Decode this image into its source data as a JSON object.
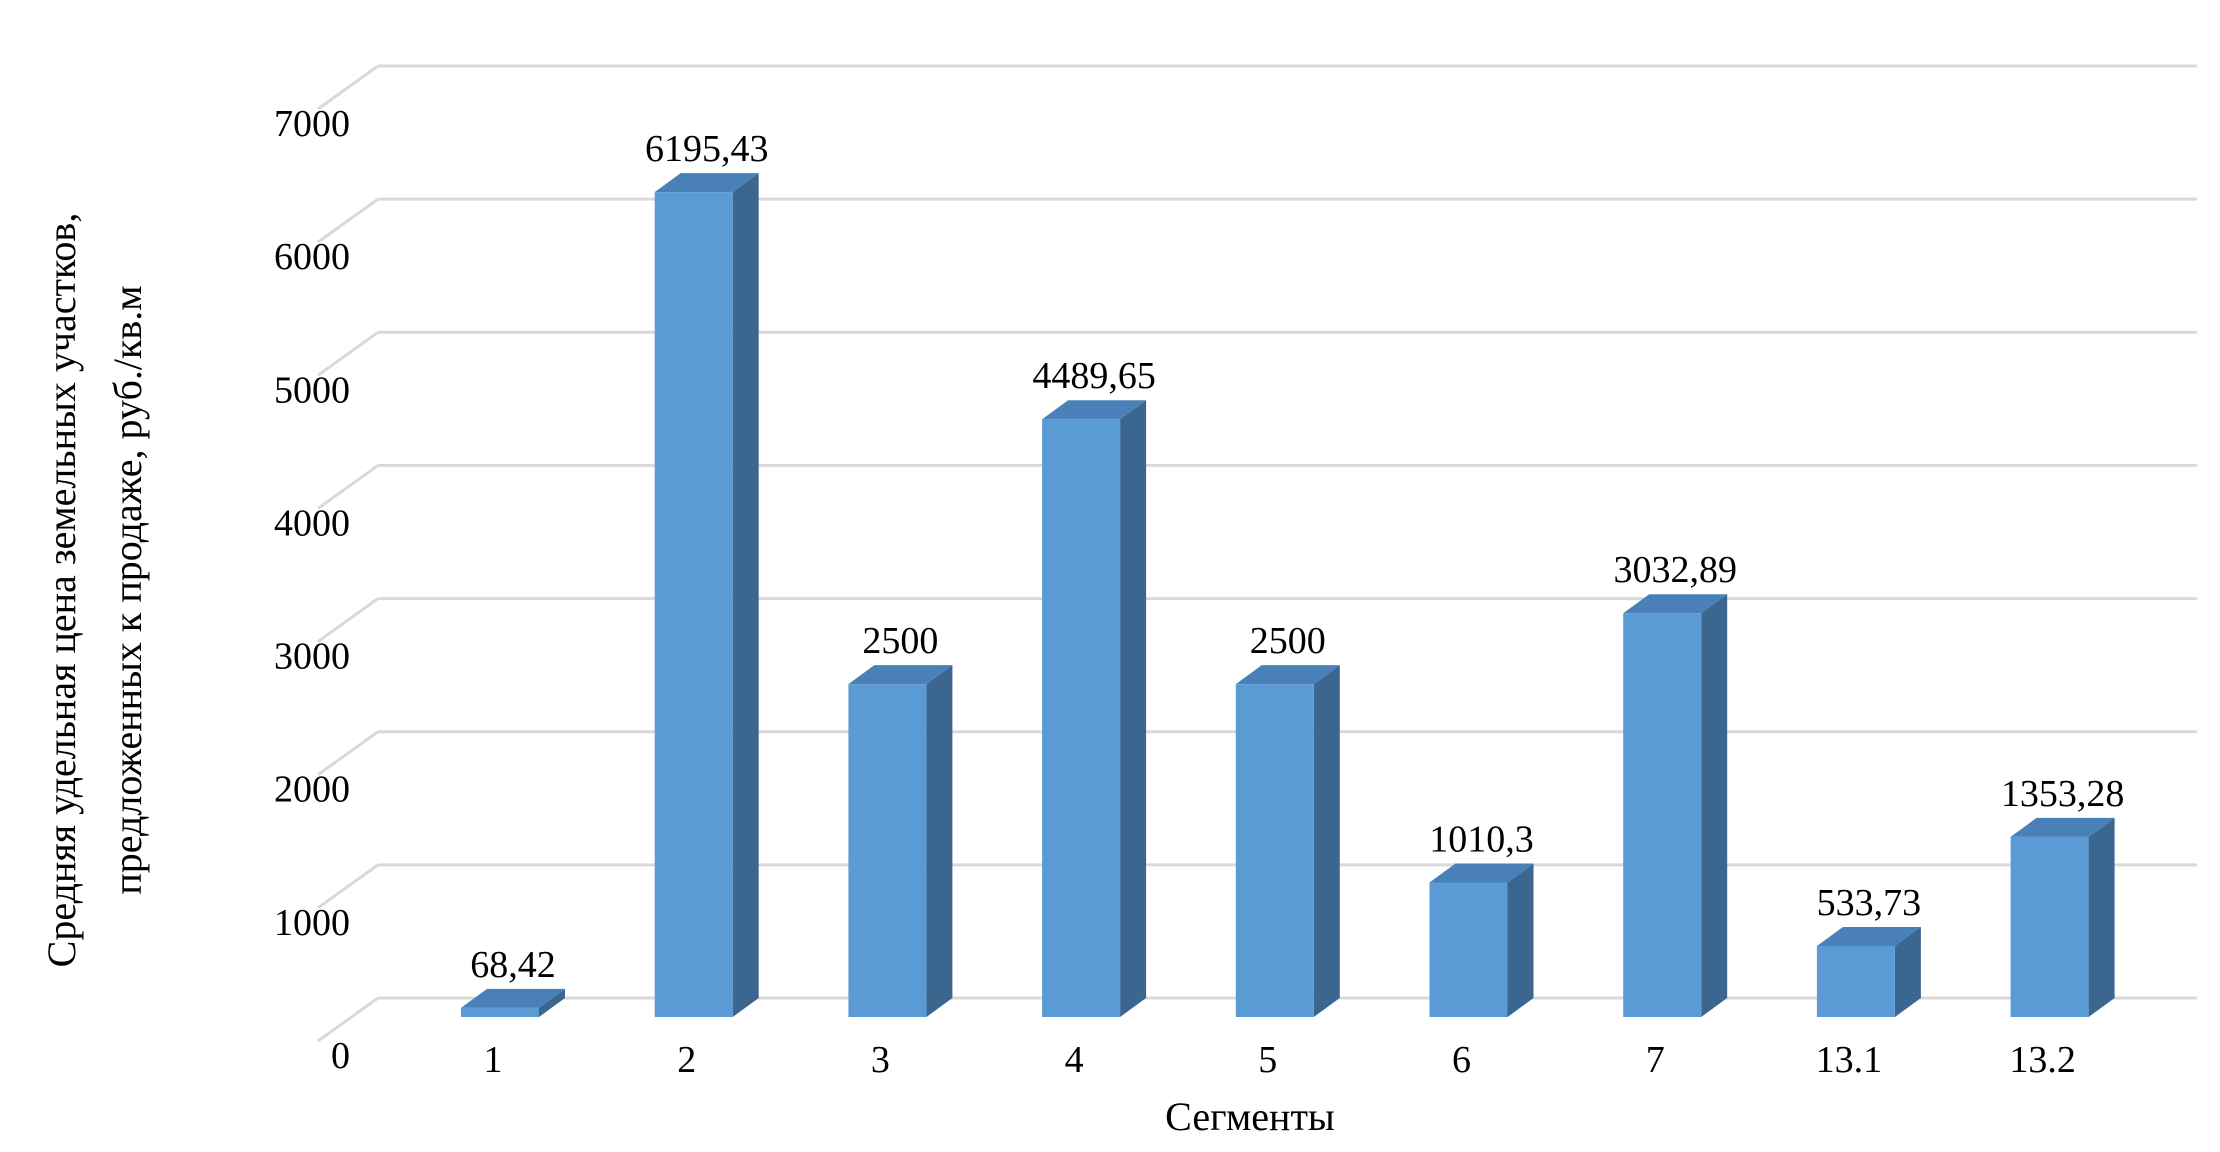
{
  "chart_data": {
    "type": "bar",
    "style": "3d-column",
    "categories": [
      "1",
      "2",
      "3",
      "4",
      "5",
      "6",
      "7",
      "13.1",
      "13.2"
    ],
    "values": [
      68.42,
      6195.43,
      2500,
      4489.65,
      2500,
      1010.3,
      3032.89,
      533.73,
      1353.28
    ],
    "data_labels": [
      "68,42",
      "6195,43",
      "2500",
      "4489,65",
      "2500",
      "1010,3",
      "3032,89",
      "533,73",
      "1353,28"
    ],
    "y_ticks": [
      "0",
      "1000",
      "2000",
      "3000",
      "4000",
      "5000",
      "6000",
      "7000"
    ],
    "ylim": [
      0,
      7000
    ],
    "xlabel": "Сегменты",
    "ylabel_lines": [
      "Средняя удельная цена земельных участков,",
      "предложенных к продаже, руб./кв.м"
    ],
    "grid": true,
    "legend": "none",
    "colors": {
      "bar_front": "#5b9bd5",
      "bar_side": "#3b6690",
      "bar_top": "#4a80b8",
      "grid": "#d9d9d9"
    }
  }
}
